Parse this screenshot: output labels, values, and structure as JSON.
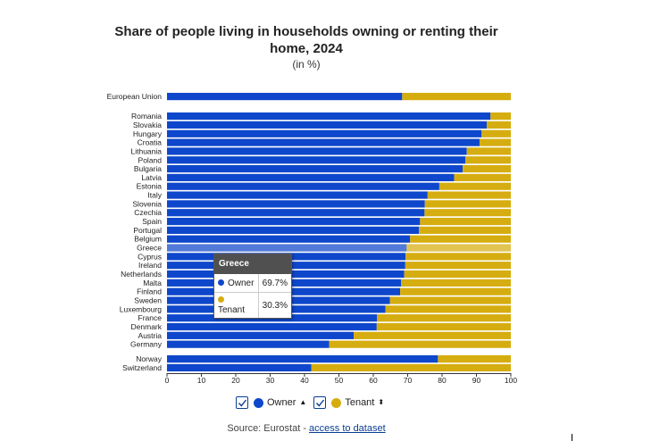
{
  "title_lines": [
    "Share of people living in households owning or renting their",
    "home, 2024"
  ],
  "subtitle": "(in %)",
  "chart_data": {
    "type": "bar",
    "orientation": "horizontal",
    "stacked": true,
    "title": "Share of people living in households owning or renting their home, 2024",
    "subtitle": "(in %)",
    "xlim": [
      0,
      100
    ],
    "x_ticks": [
      0,
      10,
      20,
      30,
      40,
      50,
      60,
      70,
      80,
      90,
      100
    ],
    "categories": [
      "European Union",
      "Romania",
      "Slovakia",
      "Hungary",
      "Croatia",
      "Lithuania",
      "Poland",
      "Bulgaria",
      "Latvia",
      "Estonia",
      "Italy",
      "Slovenia",
      "Czechia",
      "Spain",
      "Portugal",
      "Belgium",
      "Greece",
      "Cyprus",
      "Ireland",
      "Netherlands",
      "Malta",
      "Finland",
      "Sweden",
      "Luxembourg",
      "France",
      "Denmark",
      "Austria",
      "Germany",
      "Norway",
      "Switzerland"
    ],
    "groups": [
      [
        0
      ],
      [
        1,
        27
      ],
      [
        28,
        29
      ]
    ],
    "series": [
      {
        "name": "Owner",
        "color": "#0e47cb",
        "values": [
          68.4,
          94.1,
          93.0,
          91.5,
          90.9,
          87.2,
          86.8,
          86.0,
          83.5,
          79.2,
          75.8,
          75.0,
          74.9,
          73.6,
          73.3,
          70.7,
          69.7,
          69.4,
          69.3,
          69.0,
          68.1,
          67.8,
          64.8,
          63.5,
          61.1,
          61.0,
          54.3,
          47.2,
          78.8,
          42.0
        ]
      },
      {
        "name": "Tenant",
        "color": "#d6ad10",
        "values": [
          31.6,
          5.9,
          7.0,
          8.5,
          9.1,
          12.8,
          13.2,
          14.0,
          16.5,
          20.8,
          24.2,
          25.0,
          25.1,
          26.4,
          26.7,
          29.3,
          30.3,
          30.6,
          30.7,
          31.0,
          31.9,
          32.2,
          35.2,
          36.5,
          38.9,
          39.0,
          45.7,
          52.8,
          21.2,
          58.0
        ]
      }
    ],
    "highlighted_category": "Greece"
  },
  "tooltip": {
    "country": "Greece",
    "rows": [
      {
        "label": "Owner",
        "value": "69.7%",
        "color": "#0e47cb"
      },
      {
        "label": "Tenant",
        "value": "30.3%",
        "color": "#d6ad10"
      }
    ]
  },
  "legend": [
    {
      "label": "Owner",
      "color": "#0e47cb",
      "sort": "▲"
    },
    {
      "label": "Tenant",
      "color": "#d6ad10",
      "sort": "⬍"
    }
  ],
  "source": {
    "prefix": "Source: Eurostat - ",
    "link": "access to dataset"
  }
}
